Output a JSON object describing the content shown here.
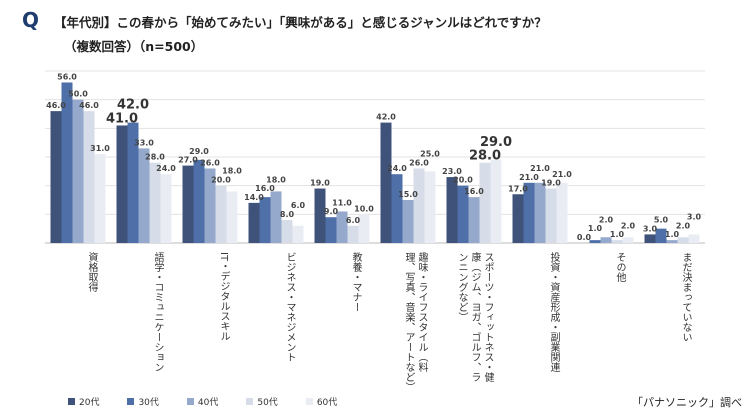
{
  "title": {
    "q": "Q",
    "line1": "【年代別】この春から「始めてみたい」「興味がある」と感じるジャンルはどれですか？",
    "line2": "（複数回答）（n=500）"
  },
  "source": "「パナソニック」調べ",
  "chart_data": {
    "type": "bar",
    "ylim": [
      0,
      60
    ],
    "grid": true,
    "legend": "bottom",
    "categories": [
      "資格取得",
      "語学・コミュニケーション",
      "IT・デジタルスキル",
      "ビジネス・マネジメント",
      "教養・マナー",
      "趣味・ライフスタイル（料理、写真、音楽、アートなど）",
      "スポーツ・フィットネス・健康（ジム、ヨガ、ゴルフ、ランニングなど）",
      "投資・資産形成・副業関連",
      "その他",
      "まだ決まっていない"
    ],
    "series": [
      {
        "name": "20代",
        "color": "#3f527a",
        "values": [
          46,
          41,
          27,
          14,
          19,
          42,
          23,
          17,
          0,
          3
        ]
      },
      {
        "name": "30代",
        "color": "#4e6fa8",
        "values": [
          56,
          42,
          29,
          16,
          9,
          24,
          20,
          21,
          1,
          5
        ]
      },
      {
        "name": "40代",
        "color": "#94a9cb",
        "values": [
          50,
          33,
          26,
          18,
          11,
          15,
          16,
          21,
          2,
          1
        ]
      },
      {
        "name": "50代",
        "color": "#d6dde9",
        "values": [
          46,
          28,
          20,
          8,
          6,
          26,
          28,
          19,
          1,
          2
        ]
      },
      {
        "name": "60代",
        "color": "#e9ecf3",
        "values": [
          31,
          24,
          18,
          6,
          10,
          25,
          29,
          21,
          2,
          3
        ]
      }
    ]
  }
}
